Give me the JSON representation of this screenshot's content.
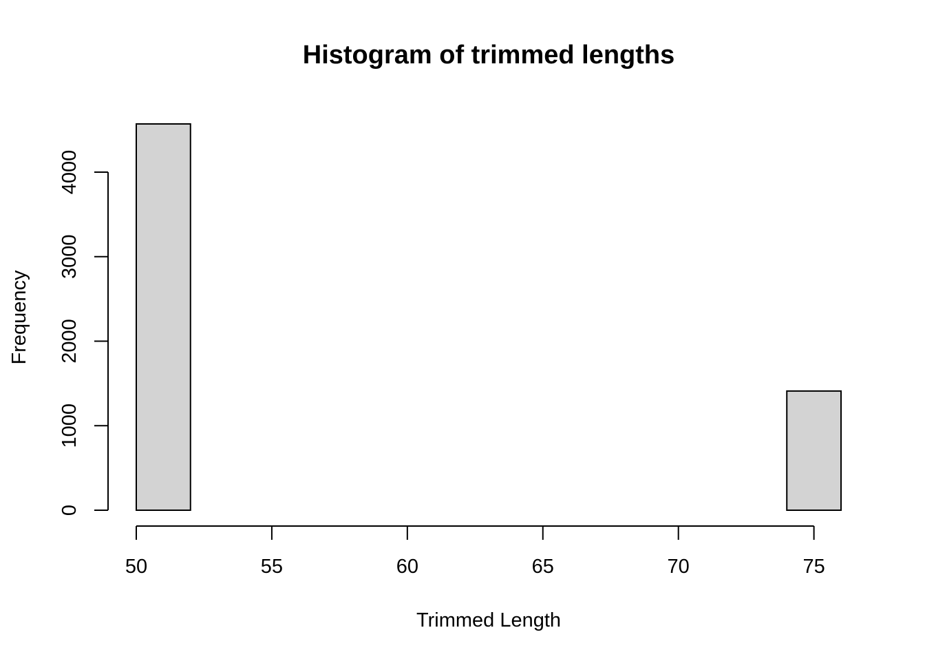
{
  "chart_data": {
    "type": "bar",
    "title": "Histogram of trimmed lengths",
    "xlabel": "Trimmed Length",
    "ylabel": "Frequency",
    "bin_edges": [
      50,
      52,
      54,
      56,
      58,
      60,
      62,
      64,
      66,
      68,
      70,
      72,
      74,
      76
    ],
    "values": [
      4570,
      0,
      0,
      0,
      0,
      0,
      0,
      0,
      0,
      0,
      0,
      0,
      1410
    ],
    "xlim": [
      50,
      76
    ],
    "ylim": [
      0,
      4570
    ],
    "x_ticks": [
      50,
      55,
      60,
      65,
      70,
      75
    ],
    "y_ticks": [
      0,
      1000,
      2000,
      3000,
      4000
    ],
    "bar_fill": "#d3d3d3",
    "bar_stroke": "#000000",
    "grid": false,
    "legend": "none"
  }
}
